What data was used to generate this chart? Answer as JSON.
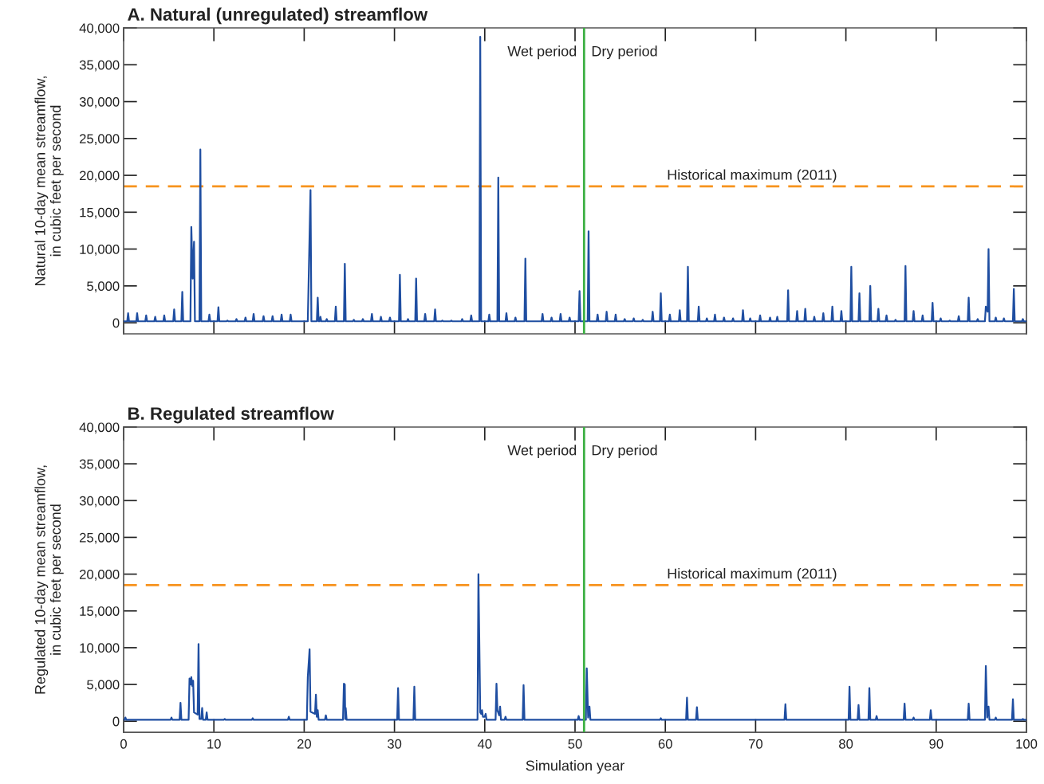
{
  "chart_data": [
    {
      "type": "line",
      "title": "A. Natural (unregulated) streamflow",
      "ylabel": "Natural 10-day mean streamflow,\nin cubic feet per second",
      "xlim": [
        0,
        100
      ],
      "xticks": [
        0,
        10,
        20,
        30,
        40,
        50,
        60,
        70,
        80,
        90,
        100
      ],
      "ylim": [
        -1500,
        40000
      ],
      "yticks": [
        {
          "value": 0,
          "label": "0"
        },
        {
          "value": 5000,
          "label": "5,000"
        },
        {
          "value": 10000,
          "label": "10,000"
        },
        {
          "value": 15000,
          "label": "15,000"
        },
        {
          "value": 20000,
          "label": "20,000"
        },
        {
          "value": 25000,
          "label": "25,000"
        },
        {
          "value": 30000,
          "label": "30,000"
        },
        {
          "value": 35000,
          "label": "35,000"
        },
        {
          "value": 40000,
          "label": "40,000"
        }
      ],
      "tick_labels": "y",
      "grid": false,
      "marker": "none",
      "line_style": "solid",
      "ref_lines": [
        {
          "axis": "y",
          "value": 18500,
          "label": "Historical maximum (2011)",
          "color": "#f7931e",
          "line_style": "dashed"
        },
        {
          "axis": "x",
          "value": 51,
          "label": null,
          "color": "#3cb043",
          "line_style": "solid"
        }
      ],
      "annotations": [
        "Wet period",
        "Dry period"
      ],
      "series": [
        {
          "color": "#1f4ea1",
          "x": [
            0,
            0.4,
            0.5,
            0.6,
            1.4,
            1.5,
            1.6,
            2.4,
            2.5,
            2.6,
            3.4,
            3.5,
            3.6,
            4.4,
            4.5,
            4.6,
            5.5,
            5.6,
            5.7,
            6.4,
            6.5,
            6.6,
            7.4,
            7.5,
            7.65,
            7.8,
            7.9,
            8.4,
            8.5,
            8.6,
            9.4,
            9.5,
            9.6,
            10.4,
            10.5,
            10.6,
            11.4,
            11.5,
            11.6,
            12.4,
            12.5,
            12.6,
            13.4,
            13.5,
            13.6,
            14.3,
            14.4,
            14.5,
            15.4,
            15.5,
            15.6,
            16.4,
            16.5,
            16.6,
            17.4,
            17.5,
            17.6,
            18.4,
            18.5,
            18.6,
            20.4,
            20.5,
            20.7,
            20.8,
            21.4,
            21.5,
            21.6,
            21.7,
            21.8,
            21.9,
            22.4,
            22.5,
            22.6,
            23.4,
            23.5,
            23.6,
            24.4,
            24.5,
            24.6,
            25.4,
            25.5,
            25.6,
            26.4,
            26.5,
            26.6,
            27.4,
            27.5,
            27.6,
            28.4,
            28.5,
            28.6,
            29.4,
            29.5,
            29.6,
            30.5,
            30.6,
            30.7,
            31.4,
            31.5,
            31.6,
            32.3,
            32.4,
            32.5,
            33.3,
            33.4,
            33.5,
            34.4,
            34.5,
            34.6,
            35.2,
            35.3,
            35.4,
            36.2,
            36.3,
            36.4,
            37.4,
            37.5,
            37.6,
            38.4,
            38.5,
            38.6,
            39.4,
            39.5,
            39.6,
            40.4,
            40.5,
            40.6,
            41.4,
            41.5,
            41.6,
            42.3,
            42.4,
            42.5,
            43.3,
            43.4,
            43.5,
            44.4,
            44.5,
            44.6,
            46.3,
            46.4,
            46.5,
            47.3,
            47.4,
            47.5,
            48.3,
            48.4,
            48.5,
            49.3,
            49.4,
            49.5,
            50.4,
            50.5,
            50.6,
            51.4,
            51.5,
            51.6,
            52.4,
            52.5,
            52.6,
            53.4,
            53.5,
            53.6,
            54.4,
            54.5,
            54.6,
            55.4,
            55.5,
            55.6,
            56.4,
            56.5,
            56.6,
            57.4,
            57.5,
            57.6,
            58.5,
            58.6,
            58.7,
            59.4,
            59.5,
            59.6,
            60.4,
            60.5,
            60.6,
            61.5,
            61.6,
            61.7,
            62.4,
            62.5,
            62.6,
            63.6,
            63.7,
            63.8,
            64.5,
            64.6,
            64.7,
            65.4,
            65.5,
            65.6,
            66.4,
            66.5,
            66.6,
            67.4,
            67.5,
            67.6,
            68.5,
            68.6,
            68.7,
            69.3,
            69.4,
            69.5,
            70.4,
            70.5,
            70.6,
            71.5,
            71.6,
            71.7,
            72.3,
            72.4,
            72.5,
            73.5,
            73.6,
            73.7,
            74.5,
            74.6,
            74.7,
            75.4,
            75.5,
            75.6,
            76.4,
            76.5,
            76.6,
            77.4,
            77.5,
            77.6,
            78.4,
            78.5,
            78.6,
            79.4,
            79.5,
            79.6,
            80.5,
            80.6,
            80.7,
            81.4,
            81.5,
            81.6,
            82.6,
            82.7,
            82.8,
            83.5,
            83.6,
            83.7,
            84.4,
            84.5,
            84.6,
            85.4,
            85.5,
            85.6,
            86.5,
            86.6,
            86.7,
            87.4,
            87.5,
            87.6,
            88.4,
            88.5,
            88.6,
            89.5,
            89.6,
            89.7,
            90.4,
            90.5,
            90.6,
            91.4,
            91.5,
            91.6,
            92.4,
            92.5,
            92.6,
            93.5,
            93.6,
            93.7,
            94.5,
            94.6,
            94.7,
            95.4,
            95.5,
            95.7,
            95.8,
            95.9,
            96.5,
            96.6,
            96.7,
            97.4,
            97.5,
            97.6,
            98.5,
            98.6,
            98.7,
            99.5,
            99.6,
            99.7,
            100
          ],
          "values": [
            200,
            200,
            1300,
            200,
            200,
            1300,
            200,
            200,
            1000,
            200,
            200,
            800,
            200,
            200,
            1000,
            200,
            200,
            1800,
            200,
            200,
            4200,
            200,
            200,
            13000,
            6000,
            11000,
            200,
            200,
            23500,
            200,
            200,
            1100,
            200,
            200,
            2100,
            200,
            200,
            300,
            200,
            200,
            500,
            200,
            200,
            700,
            200,
            200,
            1200,
            200,
            200,
            900,
            200,
            200,
            900,
            200,
            200,
            1100,
            200,
            200,
            1100,
            200,
            200,
            6000,
            18000,
            200,
            200,
            3400,
            200,
            200,
            800,
            200,
            200,
            500,
            200,
            200,
            2200,
            200,
            200,
            8000,
            200,
            200,
            400,
            200,
            200,
            500,
            200,
            200,
            1200,
            200,
            200,
            800,
            200,
            200,
            700,
            200,
            200,
            6500,
            200,
            200,
            500,
            200,
            200,
            6000,
            200,
            200,
            1200,
            200,
            200,
            1800,
            200,
            200,
            300,
            200,
            200,
            300,
            200,
            200,
            500,
            200,
            200,
            1000,
            200,
            200,
            38800,
            200,
            200,
            1100,
            200,
            200,
            19700,
            200,
            200,
            1300,
            200,
            200,
            700,
            200,
            200,
            8700,
            200,
            200,
            1200,
            200,
            200,
            700,
            200,
            200,
            1200,
            200,
            200,
            700,
            200,
            200,
            4300,
            200,
            200,
            12400,
            200,
            200,
            1100,
            200,
            200,
            1500,
            200,
            200,
            1100,
            200,
            200,
            500,
            200,
            200,
            600,
            200,
            200,
            400,
            200,
            200,
            1500,
            200,
            200,
            4000,
            200,
            200,
            1100,
            200,
            200,
            1700,
            200,
            200,
            7600,
            200,
            200,
            2200,
            200,
            200,
            600,
            200,
            200,
            1100,
            200,
            200,
            700,
            200,
            200,
            600,
            200,
            200,
            1700,
            200,
            200,
            600,
            200,
            200,
            1000,
            200,
            200,
            700,
            200,
            200,
            800,
            200,
            200,
            4400,
            200,
            200,
            1600,
            200,
            200,
            1900,
            200,
            200,
            800,
            200,
            200,
            1300,
            200,
            200,
            2200,
            200,
            200,
            1600,
            200,
            200,
            7600,
            200,
            200,
            4000,
            200,
            200,
            5000,
            200,
            200,
            1900,
            200,
            200,
            1000,
            200,
            200,
            400,
            200,
            200,
            7700,
            200,
            200,
            1600,
            200,
            200,
            1000,
            200,
            200,
            2700,
            200,
            200,
            600,
            200,
            200,
            300,
            200,
            200,
            900,
            200,
            200,
            3400,
            200,
            200,
            500,
            200,
            200,
            2200,
            1500,
            10000,
            200,
            200,
            700,
            200,
            200,
            600,
            200,
            200,
            4600,
            200,
            200,
            500,
            200,
            200
          ]
        }
      ]
    },
    {
      "type": "line",
      "title": "B. Regulated streamflow",
      "ylabel": "Regulated 10-day mean streamflow,\nin cubic feet per second",
      "xlabel": "Simulation year",
      "xlim": [
        0,
        100
      ],
      "xticks": [
        0,
        10,
        20,
        30,
        40,
        50,
        60,
        70,
        80,
        90,
        100
      ],
      "ylim": [
        -1500,
        40000
      ],
      "yticks": [
        {
          "value": 0,
          "label": "0"
        },
        {
          "value": 5000,
          "label": "5,000"
        },
        {
          "value": 10000,
          "label": "10,000"
        },
        {
          "value": 15000,
          "label": "15,000"
        },
        {
          "value": 20000,
          "label": "20,000"
        },
        {
          "value": 25000,
          "label": "25,000"
        },
        {
          "value": 30000,
          "label": "30,000"
        },
        {
          "value": 35000,
          "label": "35,000"
        },
        {
          "value": 40000,
          "label": "40,000"
        }
      ],
      "grid": false,
      "marker": "none",
      "line_style": "solid",
      "ref_lines": [
        {
          "axis": "y",
          "value": 18500,
          "label": "Historical maximum (2011)",
          "color": "#f7931e",
          "line_style": "dashed"
        },
        {
          "axis": "x",
          "value": 51,
          "label": null,
          "color": "#3cb043",
          "line_style": "solid"
        }
      ],
      "annotations": [
        "Wet period",
        "Dry period"
      ],
      "series": [
        {
          "color": "#1f4ea1",
          "x": [
            0,
            0.1,
            0.2,
            0.3,
            5.2,
            5.3,
            5.4,
            6.2,
            6.3,
            6.4,
            7.2,
            7.3,
            7.4,
            7.5,
            7.6,
            7.7,
            7.8,
            8.2,
            8.3,
            8.4,
            8.6,
            8.7,
            8.8,
            9.1,
            9.2,
            9.3,
            11.1,
            11.2,
            11.3,
            14.2,
            14.3,
            14.4,
            18.2,
            18.3,
            18.4,
            20.3,
            20.4,
            20.6,
            20.7,
            21.2,
            21.3,
            21.4,
            21.5,
            21.6,
            22.3,
            22.4,
            22.5,
            24.3,
            24.4,
            24.5,
            24.55,
            24.6,
            24.7,
            30.3,
            30.4,
            30.5,
            32.1,
            32.2,
            32.3,
            39.2,
            39.3,
            39.5,
            39.6,
            39.7,
            39.8,
            40.0,
            40.1,
            40.2,
            41.2,
            41.3,
            41.4,
            41.6,
            41.7,
            41.8,
            42.2,
            42.3,
            42.4,
            44.2,
            44.3,
            44.4,
            50.3,
            50.4,
            50.5,
            51.2,
            51.3,
            51.45,
            51.6,
            51.7,
            59.4,
            59.5,
            59.6,
            62.3,
            62.4,
            62.5,
            63.4,
            63.5,
            63.6,
            73.2,
            73.3,
            73.4,
            80.3,
            80.4,
            80.5,
            81.3,
            81.4,
            81.5,
            82.5,
            82.6,
            82.7,
            83.3,
            83.4,
            83.5,
            86.4,
            86.5,
            86.6,
            87.4,
            87.5,
            87.6,
            89.3,
            89.4,
            89.5,
            93.5,
            93.6,
            93.7,
            95.4,
            95.5,
            95.65,
            95.8,
            95.9,
            96.5,
            96.6,
            96.7,
            98.4,
            98.5,
            98.6,
            99.5,
            99.6,
            99.7,
            100
          ],
          "values": [
            200,
            200,
            500,
            200,
            200,
            500,
            200,
            200,
            2500,
            200,
            200,
            5800,
            5000,
            6000,
            4800,
            5500,
            1200,
            900,
            10500,
            300,
            300,
            1800,
            200,
            200,
            1200,
            200,
            200,
            300,
            200,
            200,
            400,
            200,
            200,
            600,
            200,
            200,
            6000,
            9800,
            1300,
            1000,
            3600,
            600,
            1500,
            200,
            200,
            800,
            200,
            200,
            5100,
            5000,
            300,
            1800,
            200,
            200,
            4500,
            200,
            200,
            4700,
            200,
            200,
            20000,
            1200,
            1000,
            1500,
            600,
            600,
            1000,
            200,
            200,
            5100,
            1500,
            800,
            2000,
            200,
            200,
            600,
            200,
            200,
            4900,
            200,
            200,
            700,
            200,
            200,
            7200,
            500,
            2000,
            200,
            200,
            400,
            200,
            200,
            3200,
            200,
            200,
            1900,
            200,
            200,
            2300,
            200,
            200,
            4700,
            200,
            200,
            2200,
            200,
            200,
            4500,
            200,
            200,
            700,
            200,
            200,
            2400,
            200,
            200,
            500,
            200,
            200,
            1500,
            200,
            200,
            2400,
            200,
            200,
            7500,
            500,
            2000,
            200,
            200,
            500,
            200,
            200,
            3000,
            200,
            200,
            300,
            200,
            200
          ]
        }
      ]
    }
  ]
}
